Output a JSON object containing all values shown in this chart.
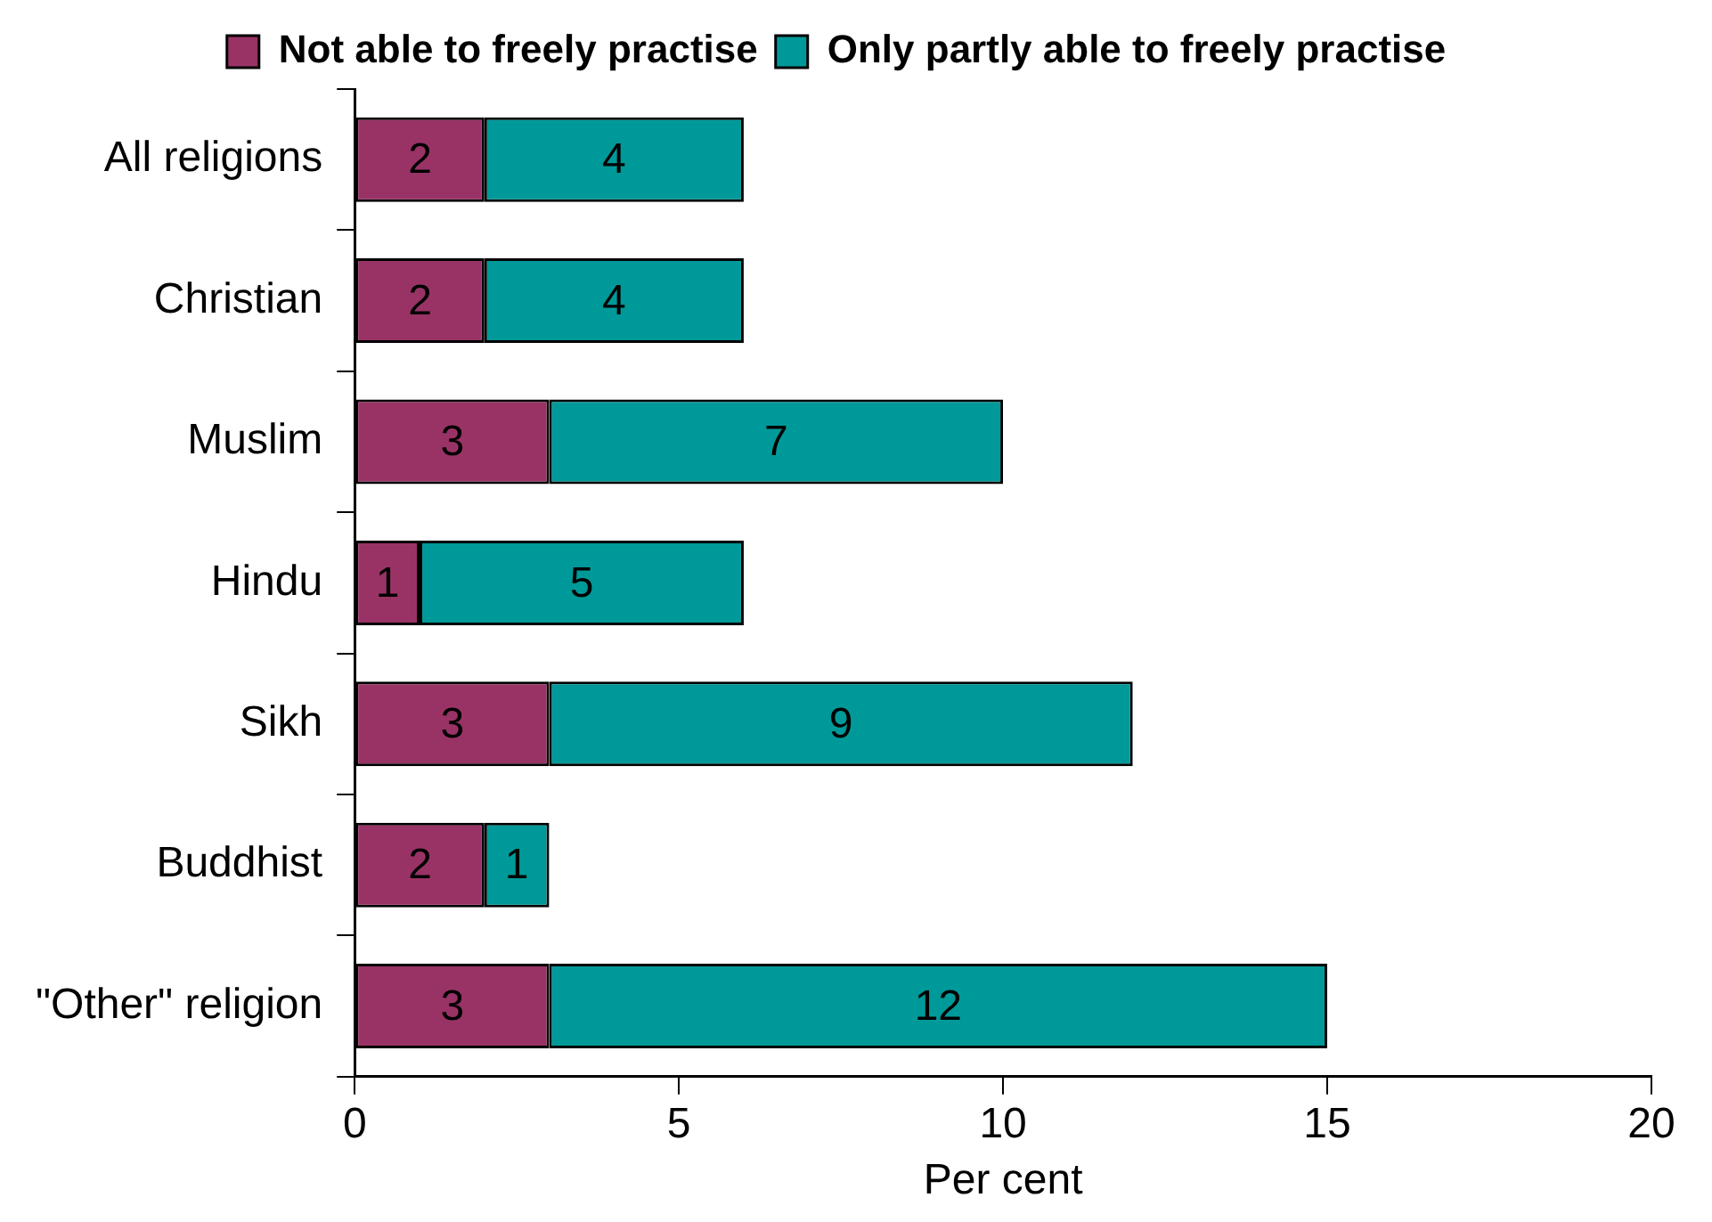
{
  "chart_data": {
    "type": "bar",
    "orientation": "horizontal",
    "stacked": true,
    "xlabel": "Per cent",
    "categories": [
      "All religions",
      "Christian",
      "Muslim",
      "Hindu",
      "Sikh",
      "Buddhist",
      "\"Other\" religion"
    ],
    "series": [
      {
        "name": "Not able to freely practise",
        "color": "#993366",
        "values": [
          2,
          2,
          3,
          1,
          3,
          2,
          3
        ]
      },
      {
        "name": "Only partly able to freely practise",
        "color": "#009999",
        "values": [
          4,
          4,
          7,
          5,
          9,
          1,
          12
        ]
      }
    ],
    "xlim": [
      0,
      20
    ],
    "xticks": [
      0,
      5,
      10,
      15,
      20
    ],
    "grid": false,
    "legend": "top",
    "data_labels": true
  }
}
